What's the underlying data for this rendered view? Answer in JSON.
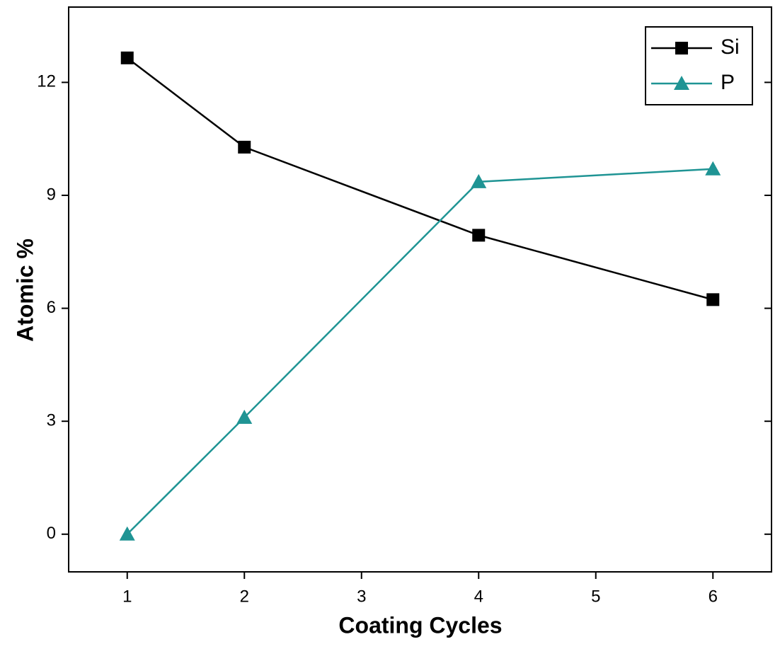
{
  "chart_data": {
    "type": "line",
    "x_label": "Coating Cycles",
    "y_label": "Atomic %",
    "x": [
      1,
      2,
      4,
      6
    ],
    "series": [
      {
        "name": "Si",
        "color": "#000000",
        "marker": "square",
        "values": [
          12.65,
          10.28,
          7.94,
          6.23
        ]
      },
      {
        "name": "P",
        "color": "#1f9494",
        "marker": "triangle",
        "values": [
          0,
          3.1,
          9.36,
          9.7
        ]
      }
    ],
    "xlim": [
      0.5,
      6.5
    ],
    "xticks": [
      1,
      2,
      3,
      4,
      5,
      6
    ],
    "ylim": [
      -1,
      14
    ],
    "yticks": [
      0,
      3,
      6,
      9,
      12
    ],
    "legend": "top-right"
  }
}
